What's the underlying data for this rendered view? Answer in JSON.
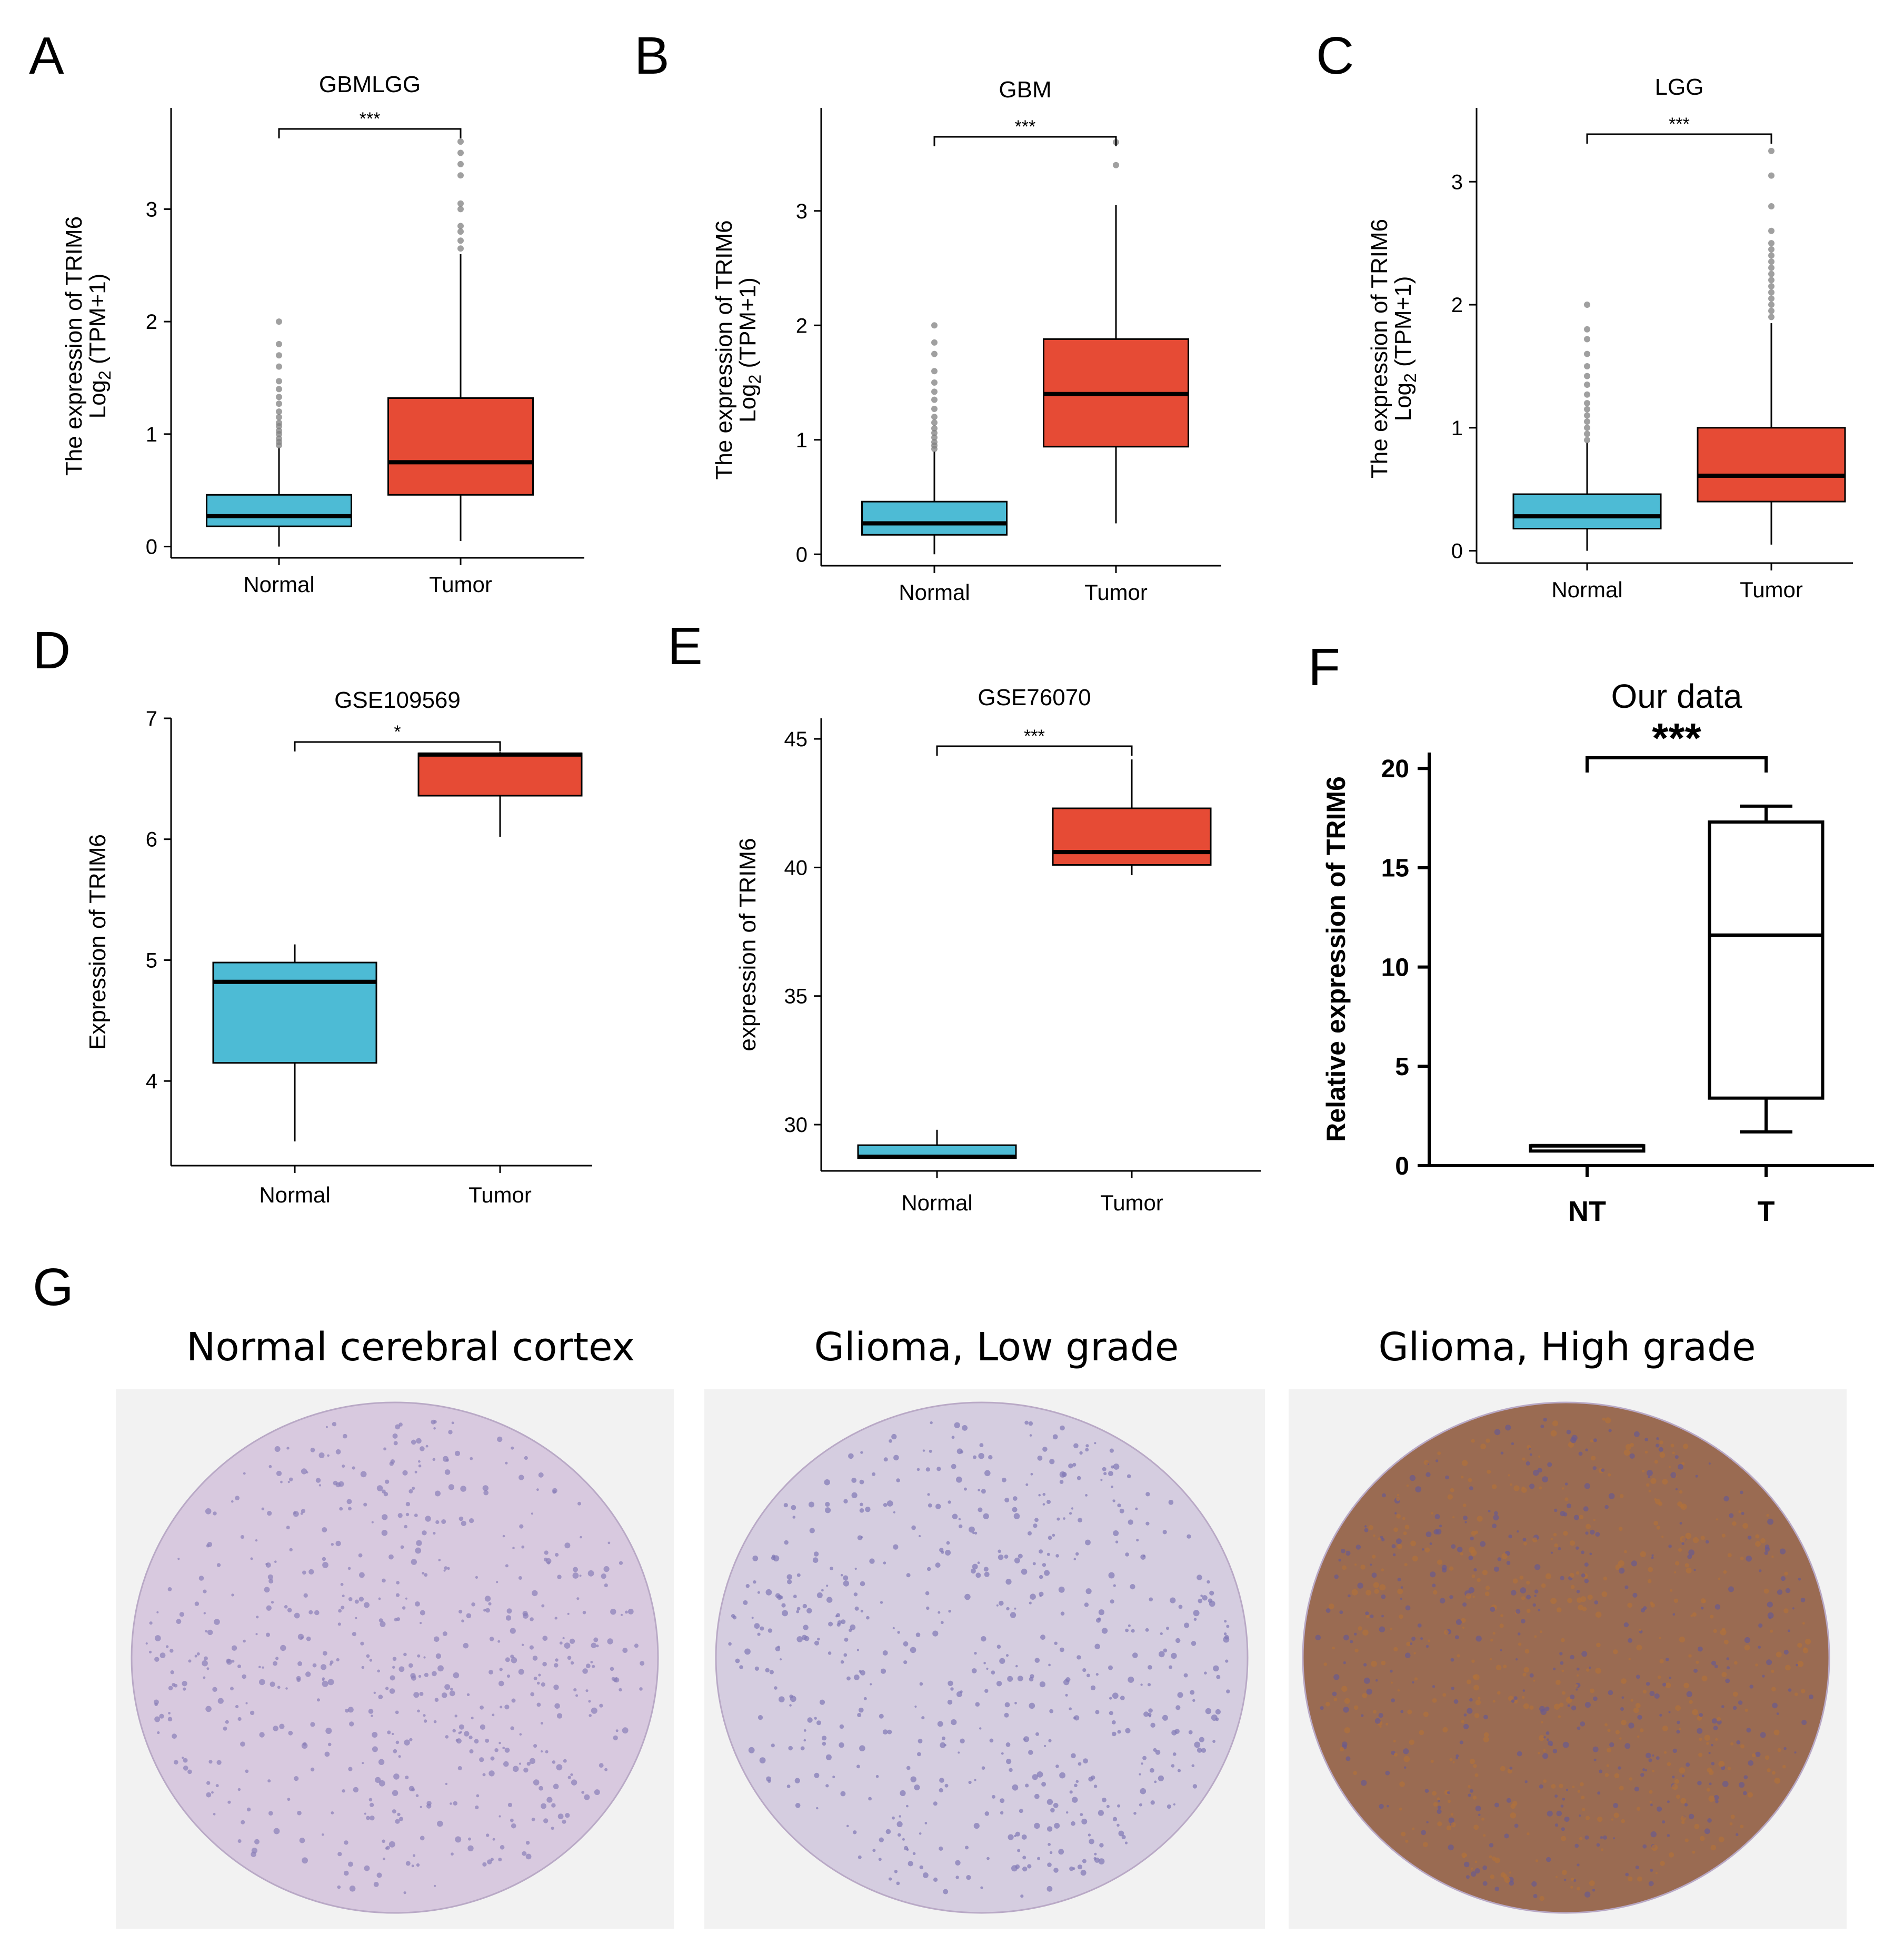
{
  "panels": [
    "A",
    "B",
    "C",
    "D",
    "E",
    "F",
    "G"
  ],
  "colors": {
    "normal": "#4DBBD5",
    "tumor": "#E64B35",
    "outlier": "#808080",
    "line": "#000000"
  },
  "chart_data": [
    {
      "type": "box",
      "panel": "A",
      "title": "GBMLGG",
      "ylabel": "The expression of TRIM6",
      "ylabel2_prefix": "Log",
      "ylabel2_sub": "2",
      "ylabel2_suffix": " (TPM+1)",
      "categories": [
        "Normal",
        "Tumor"
      ],
      "ylim": [
        -0.1,
        3.9
      ],
      "yticks": [
        0,
        1,
        2,
        3
      ],
      "significance": "***",
      "boxes": [
        {
          "category": "Normal",
          "min": 0.0,
          "q1": 0.18,
          "median": 0.27,
          "q3": 0.46,
          "max": 0.88,
          "outliers": [
            0.9,
            0.93,
            0.96,
            1.0,
            1.03,
            1.07,
            1.1,
            1.15,
            1.2,
            1.27,
            1.33,
            1.4,
            1.47,
            1.6,
            1.7,
            1.8,
            2.0
          ]
        },
        {
          "category": "Tumor",
          "min": 0.05,
          "q1": 0.46,
          "median": 0.75,
          "q3": 1.32,
          "max": 2.6,
          "outliers": [
            2.65,
            2.72,
            2.8,
            2.85,
            3.0,
            3.05,
            3.3,
            3.4,
            3.5,
            3.6
          ]
        }
      ]
    },
    {
      "type": "box",
      "panel": "B",
      "title": "GBM",
      "ylabel": "The expression of TRIM6",
      "ylabel2_prefix": "Log",
      "ylabel2_sub": "2",
      "ylabel2_suffix": " (TPM+1)",
      "categories": [
        "Normal",
        "Tumor"
      ],
      "ylim": [
        -0.1,
        3.9
      ],
      "yticks": [
        0,
        1,
        2,
        3
      ],
      "significance": "***",
      "boxes": [
        {
          "category": "Normal",
          "min": 0.0,
          "q1": 0.17,
          "median": 0.27,
          "q3": 0.46,
          "max": 0.9,
          "outliers": [
            0.92,
            0.95,
            0.98,
            1.02,
            1.06,
            1.1,
            1.15,
            1.2,
            1.27,
            1.35,
            1.42,
            1.5,
            1.6,
            1.75,
            1.85,
            2.0
          ]
        },
        {
          "category": "Tumor",
          "min": 0.27,
          "q1": 0.94,
          "median": 1.4,
          "q3": 1.88,
          "max": 3.05,
          "outliers": [
            3.4,
            3.6
          ]
        }
      ]
    },
    {
      "type": "box",
      "panel": "C",
      "title": "LGG",
      "ylabel": "The expression of TRIM6",
      "ylabel2_prefix": "Log",
      "ylabel2_sub": "2",
      "ylabel2_suffix": " (TPM+1)",
      "categories": [
        "Normal",
        "Tumor"
      ],
      "ylim": [
        -0.1,
        3.6
      ],
      "yticks": [
        0,
        1,
        2,
        3
      ],
      "significance": "***",
      "boxes": [
        {
          "category": "Normal",
          "min": 0.0,
          "q1": 0.18,
          "median": 0.28,
          "q3": 0.46,
          "max": 0.88,
          "outliers": [
            0.9,
            0.95,
            1.0,
            1.05,
            1.1,
            1.15,
            1.2,
            1.27,
            1.35,
            1.42,
            1.5,
            1.6,
            1.72,
            1.8,
            2.0
          ]
        },
        {
          "category": "Tumor",
          "min": 0.05,
          "q1": 0.4,
          "median": 0.61,
          "q3": 1.0,
          "max": 1.85,
          "outliers": [
            1.9,
            1.95,
            2.0,
            2.05,
            2.1,
            2.15,
            2.2,
            2.25,
            2.3,
            2.35,
            2.4,
            2.45,
            2.5,
            2.6,
            2.8,
            3.05,
            3.25
          ]
        }
      ]
    },
    {
      "type": "box",
      "panel": "D",
      "title": "GSE109569",
      "ylabel": "Expression of TRIM6",
      "categories": [
        "Normal",
        "Tumor"
      ],
      "ylim": [
        3.3,
        7.0
      ],
      "yticks": [
        4,
        5,
        6,
        7
      ],
      "significance": "*",
      "boxes": [
        {
          "category": "Normal",
          "min": 3.5,
          "q1": 4.15,
          "median": 4.82,
          "q3": 4.98,
          "max": 5.13,
          "outliers": []
        },
        {
          "category": "Tumor",
          "min": 6.02,
          "q1": 6.36,
          "median": 6.7,
          "q3": 6.71,
          "max": 6.72,
          "outliers": []
        }
      ]
    },
    {
      "type": "box",
      "panel": "E",
      "title": "GSE76070",
      "ylabel": "expression of TRIM6",
      "categories": [
        "Normal",
        "Tumor"
      ],
      "ylim": [
        28.2,
        45.8
      ],
      "yticks": [
        30,
        35,
        40,
        45
      ],
      "significance": "***",
      "boxes": [
        {
          "category": "Normal",
          "min": 28.7,
          "q1": 28.7,
          "median": 28.75,
          "q3": 29.2,
          "max": 29.8,
          "outliers": []
        },
        {
          "category": "Tumor",
          "min": 39.7,
          "q1": 40.1,
          "median": 40.6,
          "q3": 42.3,
          "max": 44.2,
          "outliers": []
        }
      ]
    },
    {
      "type": "box",
      "panel": "F",
      "title": "Our data",
      "ylabel": "Relative expression of TRIM6",
      "categories": [
        "NT",
        "T"
      ],
      "ylim": [
        0,
        20.8
      ],
      "yticks": [
        0,
        5,
        10,
        15,
        20
      ],
      "significance": "***",
      "boxes": [
        {
          "category": "NT",
          "min": 1.0,
          "q1": 1.0,
          "median": 1.0,
          "q3": 1.0,
          "max": 1.0,
          "outliers": []
        },
        {
          "category": "T",
          "min": 1.7,
          "q1": 3.4,
          "median": 11.6,
          "q3": 17.3,
          "max": 18.1,
          "outliers": []
        }
      ]
    }
  ],
  "tma": {
    "titles": [
      "Normal cerebral cortex",
      "Glioma, Low grade",
      "Glioma, High grade"
    ],
    "colors": [
      {
        "base": "#d8c9df",
        "dot": "#8a7fb8"
      },
      {
        "base": "#d5cde0",
        "dot": "#7f78b5"
      },
      {
        "base": "#9a6b52",
        "dot": "#6a5a8e"
      }
    ]
  }
}
